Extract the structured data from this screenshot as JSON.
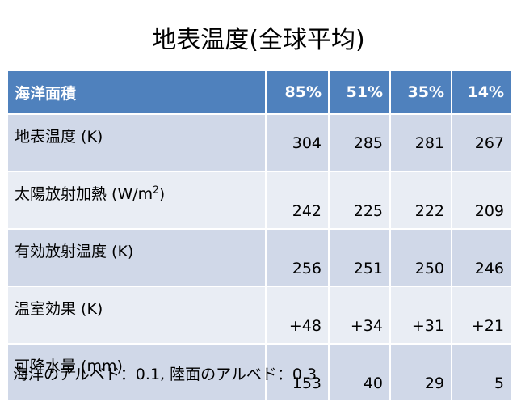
{
  "title": "地表温度(全球平均)",
  "header": {
    "label": "海洋面積",
    "values": [
      "85%",
      "51%",
      "35%",
      "14%"
    ]
  },
  "rows": [
    {
      "label": "地表温度 (K)",
      "values": [
        "304",
        "285",
        "281",
        "267"
      ]
    },
    {
      "label_prefix": "太陽放射加熱 (W/m",
      "label_sup": "2",
      "label_suffix": ")",
      "values": [
        "242",
        "225",
        "222",
        "209"
      ]
    },
    {
      "label": "有効放射温度 (K)",
      "values": [
        "256",
        "251",
        "250",
        "246"
      ]
    },
    {
      "label": "温室効果 (K)",
      "values": [
        "+48",
        "+34",
        "+31",
        "+21"
      ]
    },
    {
      "label": "可降水量 (mm)",
      "values": [
        "153",
        "40",
        "29",
        "5"
      ]
    }
  ],
  "footnote": "海洋のアルベド：0.1,  陸面のアルベド：0.3",
  "colors": {
    "header_bg": "#4f81bd",
    "row_odd": "#d0d8e8",
    "row_even": "#e9edf4"
  }
}
